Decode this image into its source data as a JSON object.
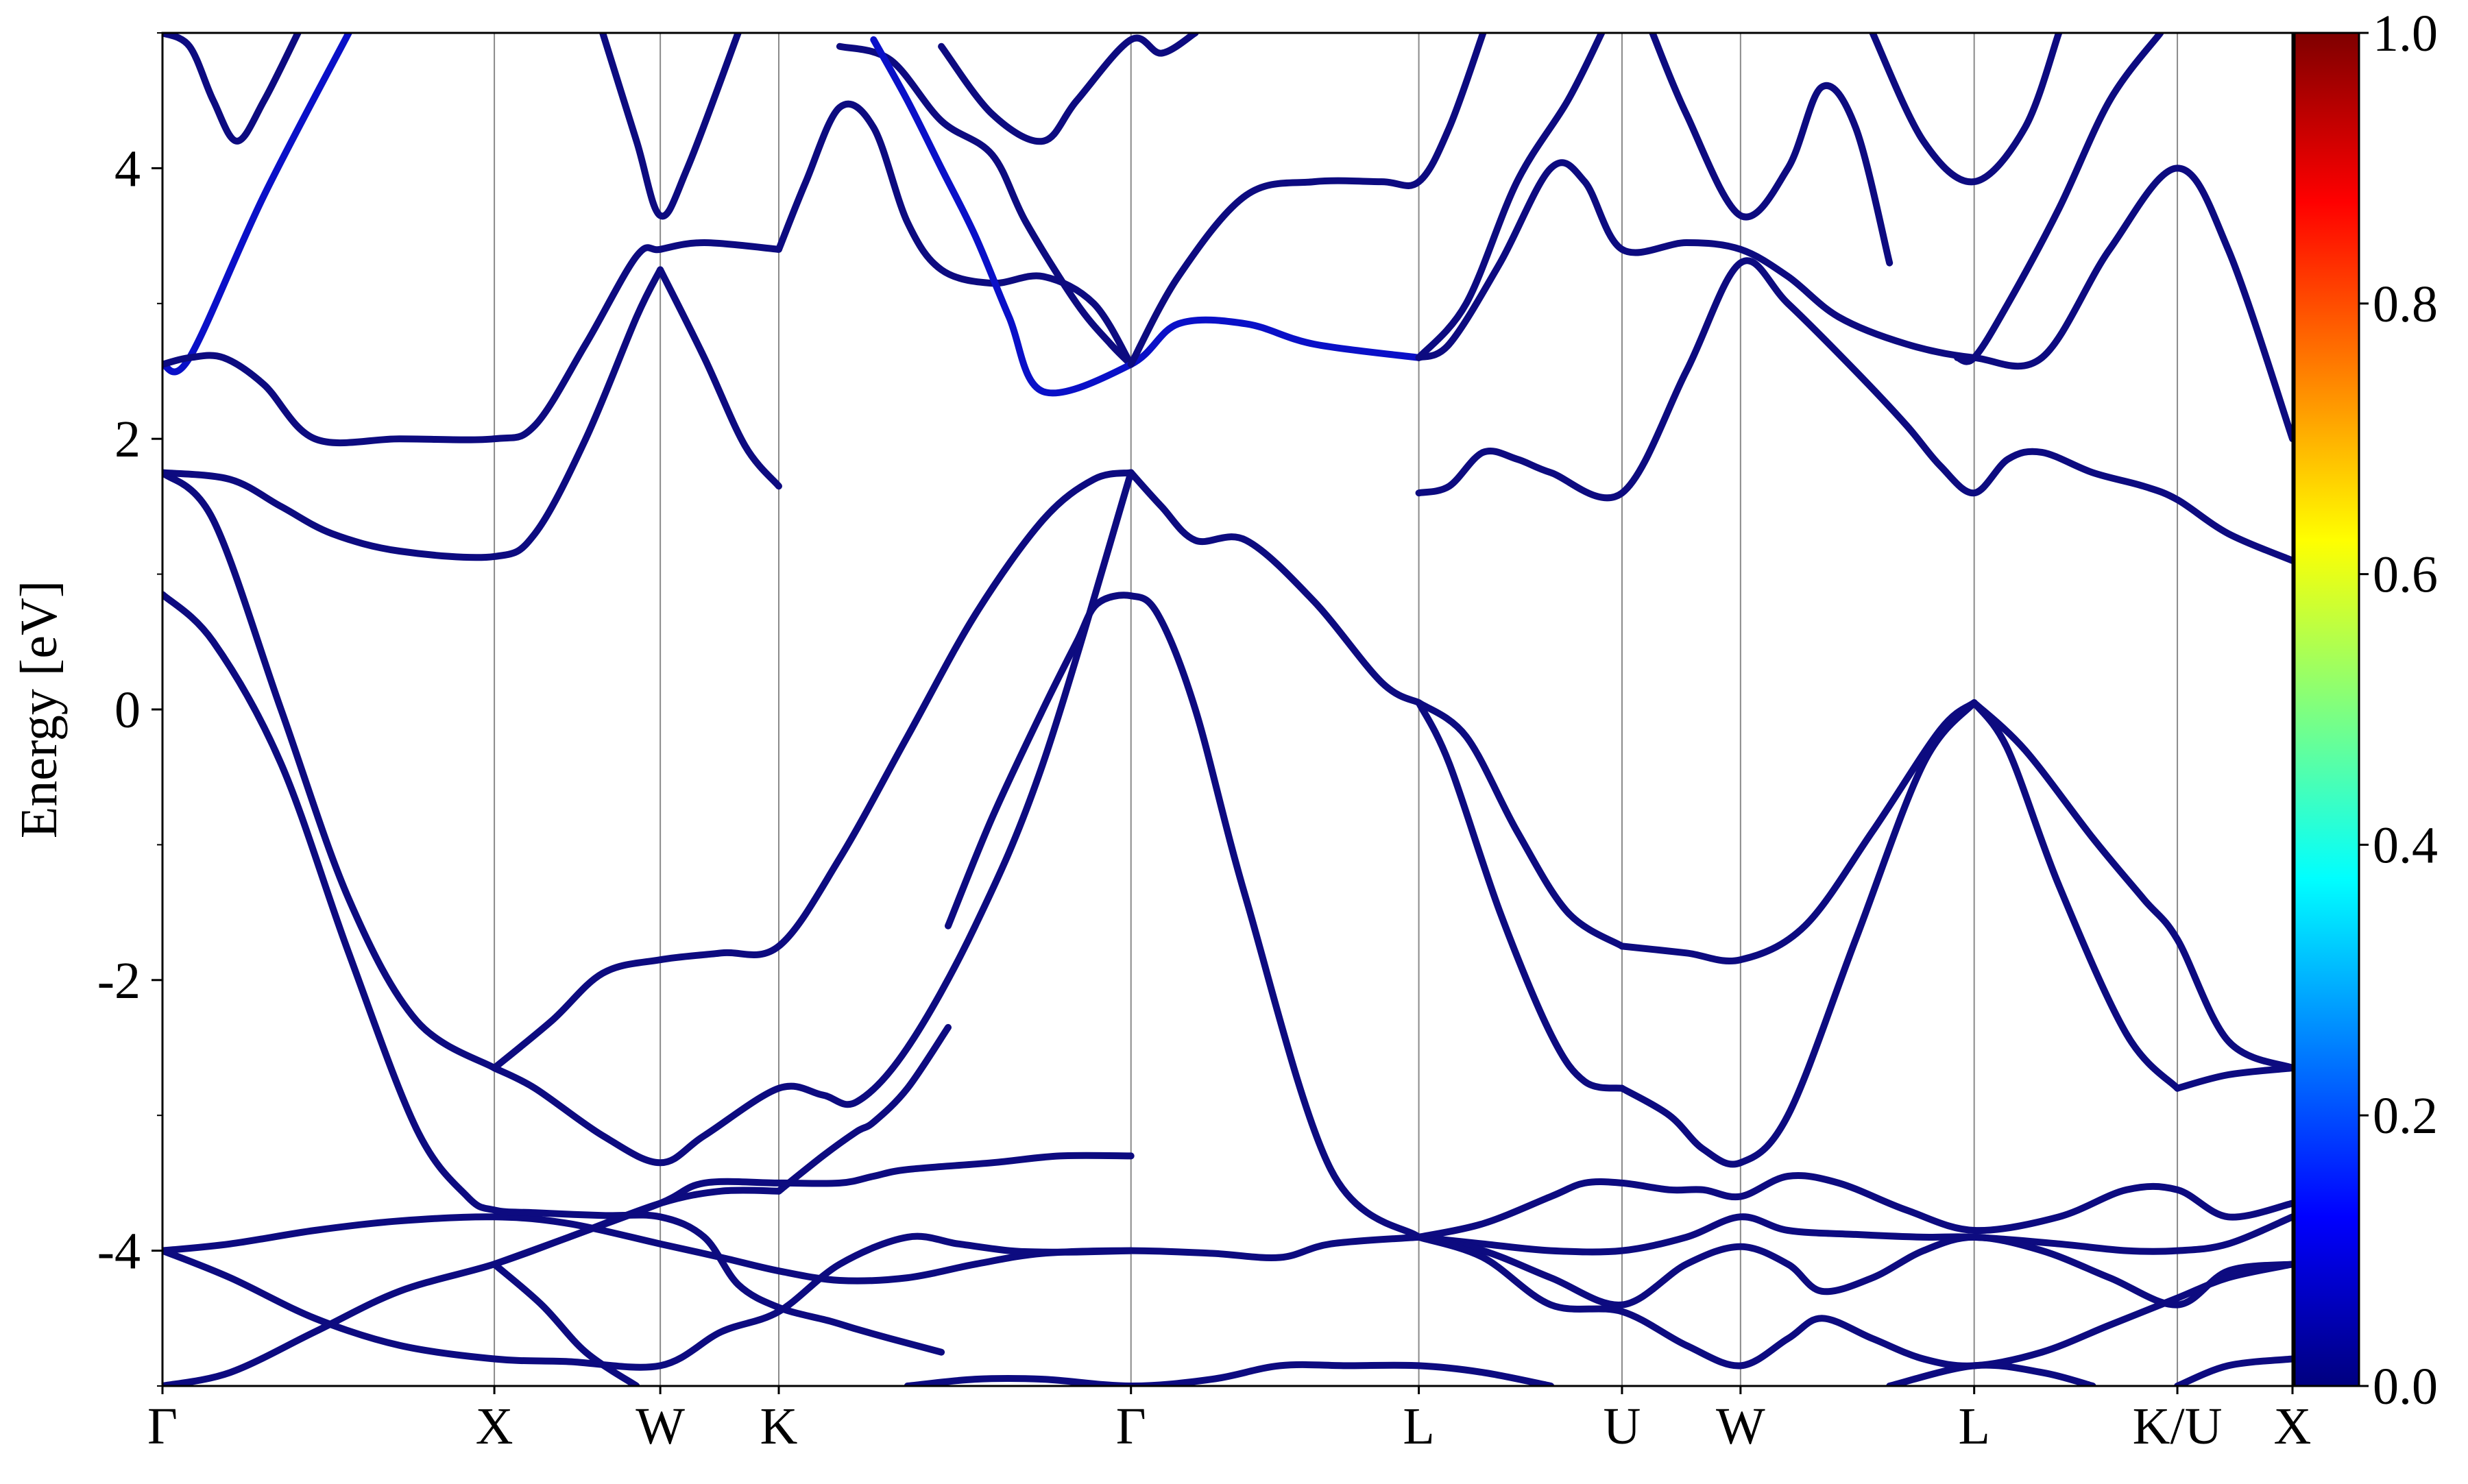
{
  "chart_data": {
    "type": "line",
    "title": "",
    "xlabel": "",
    "ylabel": "Energy [eV]",
    "ylim": [
      -5,
      5
    ],
    "yticks": [
      4,
      2,
      0,
      -2,
      -4
    ],
    "ytick_labels": [
      "4",
      "2",
      "0",
      "-2",
      "-4"
    ],
    "xlim": [
      0,
      6.29
    ],
    "high_symmetry_points": [
      {
        "label": "Γ",
        "x": 0.0
      },
      {
        "label": "X",
        "x": 0.98
      },
      {
        "label": "W",
        "x": 1.47
      },
      {
        "label": "K",
        "x": 1.82
      },
      {
        "label": "Γ",
        "x": 2.86
      },
      {
        "label": "L",
        "x": 3.71
      },
      {
        "label": "U",
        "x": 4.31
      },
      {
        "label": "W",
        "x": 4.66
      },
      {
        "label": "L",
        "x": 5.35
      },
      {
        "label": "K/U",
        "x": 5.95
      },
      {
        "label": "X",
        "x": 6.29
      }
    ],
    "grid": "vertical lines at high-symmetry points",
    "legend": "none",
    "colorbar": {
      "range": [
        0.0,
        1.0
      ],
      "ticks": [
        0.0,
        0.2,
        0.4,
        0.6,
        0.8,
        1.0
      ],
      "tick_labels": [
        "0.0",
        "0.2",
        "0.4",
        "0.6",
        "0.8",
        "1.0"
      ],
      "colormap": "jet",
      "colors": [
        "#00007f",
        "#0000ff",
        "#007fff",
        "#00ffff",
        "#7fff7f",
        "#ffff00",
        "#ff7f00",
        "#ff0000",
        "#7f0000"
      ]
    },
    "band_colors": {
      "dark": "#0d0b80",
      "bright": "#0a10c8"
    },
    "series": [
      {
        "color": "dark",
        "x": [
          0.0,
          0.2,
          0.45,
          0.7,
          0.98,
          1.2,
          1.47,
          1.65,
          1.82
        ],
        "y": [
          -5.0,
          -4.9,
          -4.6,
          -4.3,
          -4.1,
          -3.9,
          -3.65,
          -3.56,
          -3.56
        ]
      },
      {
        "color": "dark",
        "x": [
          1.82,
          1.95,
          2.05,
          2.1,
          2.2,
          2.32
        ],
        "y": [
          -3.56,
          -3.3,
          -3.12,
          -3.05,
          -2.8,
          -2.35
        ]
      },
      {
        "color": "dark",
        "x": [
          2.32,
          2.45,
          2.6,
          2.7,
          2.76,
          2.86,
          2.94,
          3.05,
          3.2,
          3.45,
          3.71
        ],
        "y": [
          -1.6,
          -0.8,
          0.0,
          0.5,
          0.78,
          0.84,
          0.7,
          0.0,
          -1.4,
          -3.4,
          -3.9
        ]
      },
      {
        "color": "dark",
        "x": [
          0.0,
          0.2,
          0.45,
          0.7,
          0.98,
          1.2,
          1.47,
          1.65,
          1.82,
          2.0,
          2.2,
          2.4,
          2.6,
          2.86,
          3.1,
          3.3,
          3.45,
          3.71
        ],
        "y": [
          -4.0,
          -3.95,
          -3.85,
          -3.78,
          -3.75,
          -3.8,
          -3.95,
          -4.05,
          -4.15,
          -4.22,
          -4.2,
          -4.1,
          -4.02,
          -4.0,
          -4.02,
          -4.05,
          -3.95,
          -3.9
        ]
      },
      {
        "color": "dark",
        "x": [
          0.0,
          0.2,
          0.45,
          0.7,
          0.98,
          1.2,
          1.47,
          1.65,
          1.82,
          2.0,
          2.2,
          2.35,
          2.5,
          2.6,
          2.7,
          2.86
        ],
        "y": [
          -4.0,
          -4.2,
          -4.5,
          -4.7,
          -4.8,
          -4.82,
          -4.85,
          -4.6,
          -4.45,
          -4.1,
          -3.9,
          -3.95,
          -4.0,
          -4.01,
          -4.01,
          -4.0
        ]
      },
      {
        "color": "dark",
        "x": [
          0.98,
          1.12,
          1.25,
          1.4
        ],
        "y": [
          -4.1,
          -4.4,
          -4.75,
          -5.0
        ]
      },
      {
        "color": "dark",
        "x": [
          0.98,
          1.2,
          1.47,
          1.6,
          1.82,
          2.0,
          2.1,
          2.2,
          2.45,
          2.65,
          2.86
        ],
        "y": [
          -4.1,
          -3.9,
          -3.65,
          -3.5,
          -3.5,
          -3.5,
          -3.45,
          -3.4,
          -3.35,
          -3.3,
          -3.3
        ]
      },
      {
        "color": "dark",
        "x": [
          0.0,
          0.15,
          0.35,
          0.55,
          0.75,
          0.9,
          0.98,
          1.1,
          1.3,
          1.47,
          1.6,
          1.7,
          1.82,
          1.97,
          2.05,
          2.15,
          2.3
        ],
        "y": [
          0.85,
          0.5,
          -0.4,
          -1.8,
          -3.1,
          -3.6,
          -3.7,
          -3.72,
          -3.74,
          -3.75,
          -3.9,
          -4.25,
          -4.42,
          -4.52,
          -4.58,
          -4.65,
          -4.75
        ]
      },
      {
        "color": "dark",
        "x": [
          0.0,
          0.15,
          0.35,
          0.55,
          0.75,
          0.98
        ],
        "y": [
          1.75,
          1.4,
          0.0,
          -1.4,
          -2.3,
          -2.65
        ]
      },
      {
        "color": "dark",
        "x": [
          0.98,
          1.1,
          1.3,
          1.47,
          1.6,
          1.82,
          1.95,
          2.05,
          2.2,
          2.4,
          2.6,
          2.86
        ],
        "y": [
          -2.65,
          -2.8,
          -3.15,
          -3.35,
          -3.15,
          -2.8,
          -2.85,
          -2.9,
          -2.5,
          -1.6,
          -0.4,
          1.75
        ]
      },
      {
        "color": "dark",
        "x": [
          0.98,
          1.15,
          1.3,
          1.47,
          1.65,
          1.82,
          2.0,
          2.2,
          2.4,
          2.6,
          2.75,
          2.86
        ],
        "y": [
          -2.65,
          -2.3,
          -1.95,
          -1.85,
          -1.8,
          -1.75,
          -1.1,
          -0.2,
          0.7,
          1.4,
          1.7,
          1.75
        ]
      },
      {
        "color": "dark",
        "x": [
          0.0,
          0.2,
          0.35,
          0.5,
          0.7,
          0.98,
          1.1,
          1.25,
          1.4,
          1.47
        ],
        "y": [
          1.75,
          1.7,
          1.5,
          1.3,
          1.17,
          1.13,
          1.3,
          2.0,
          2.9,
          3.25
        ]
      },
      {
        "color": "dark",
        "x": [
          1.47,
          1.6,
          1.72,
          1.82
        ],
        "y": [
          3.25,
          2.6,
          1.95,
          1.65
        ]
      },
      {
        "color": "dark",
        "x": [
          2.86,
          2.95,
          3.05,
          3.2,
          3.4,
          3.6,
          3.71
        ],
        "y": [
          1.75,
          1.5,
          1.25,
          1.25,
          0.8,
          0.2,
          0.05
        ]
      },
      {
        "color": "dark",
        "x": [
          3.71,
          3.8,
          3.95,
          4.1,
          4.2,
          4.31
        ],
        "y": [
          0.05,
          -0.4,
          -1.5,
          -2.4,
          -2.75,
          -2.8
        ]
      },
      {
        "color": "dark",
        "x": [
          3.71,
          3.85,
          4.0,
          4.15,
          4.31
        ],
        "y": [
          0.05,
          -0.2,
          -0.9,
          -1.5,
          -1.75
        ]
      },
      {
        "color": "dark",
        "x": [
          4.31,
          4.5,
          4.66,
          4.85,
          5.05,
          5.25,
          5.35
        ],
        "y": [
          -1.75,
          -1.8,
          -1.85,
          -1.6,
          -0.9,
          -0.15,
          0.05
        ]
      },
      {
        "color": "dark",
        "x": [
          4.31,
          4.45,
          4.55,
          4.66,
          4.8,
          5.0,
          5.2,
          5.35
        ],
        "y": [
          -2.8,
          -3.0,
          -3.25,
          -3.35,
          -3.0,
          -1.7,
          -0.4,
          0.05
        ]
      },
      {
        "color": "dark",
        "x": [
          5.35,
          5.45,
          5.6,
          5.8,
          5.95
        ],
        "y": [
          0.05,
          -0.3,
          -1.3,
          -2.4,
          -2.8
        ]
      },
      {
        "color": "dark",
        "x": [
          5.35,
          5.5,
          5.7,
          5.85,
          5.95,
          6.1,
          6.29
        ],
        "y": [
          0.05,
          -0.3,
          -0.95,
          -1.4,
          -1.7,
          -2.45,
          -2.65
        ]
      },
      {
        "color": "dark",
        "x": [
          5.95,
          6.1,
          6.29
        ],
        "y": [
          -2.8,
          -2.7,
          -2.65
        ]
      },
      {
        "color": "dark",
        "x": [
          3.71,
          3.9,
          4.1,
          4.2,
          4.31,
          4.45,
          4.55,
          4.66,
          4.8,
          4.95,
          5.15,
          5.35,
          5.6,
          5.8,
          5.95,
          6.1,
          6.29
        ],
        "y": [
          -3.9,
          -3.8,
          -3.6,
          -3.5,
          -3.5,
          -3.55,
          -3.55,
          -3.6,
          -3.45,
          -3.5,
          -3.7,
          -3.85,
          -3.75,
          -3.55,
          -3.55,
          -3.75,
          -3.65
        ]
      },
      {
        "color": "dark",
        "x": [
          3.71,
          3.9,
          4.1,
          4.31,
          4.5,
          4.66,
          4.8,
          5.0,
          5.2,
          5.35,
          5.6,
          5.8,
          5.95,
          6.1,
          6.29
        ],
        "y": [
          -3.9,
          -3.95,
          -4.0,
          -4.0,
          -3.9,
          -3.75,
          -3.85,
          -3.88,
          -3.9,
          -3.9,
          -3.95,
          -4.0,
          -4.0,
          -3.95,
          -3.75
        ]
      },
      {
        "color": "dark",
        "x": [
          3.71,
          3.9,
          4.1,
          4.31,
          4.5,
          4.66,
          4.8,
          4.9,
          5.05,
          5.2,
          5.35,
          5.55,
          5.75,
          5.95,
          6.1,
          6.29
        ],
        "y": [
          -3.9,
          -4.0,
          -4.2,
          -4.4,
          -4.1,
          -3.97,
          -4.1,
          -4.3,
          -4.2,
          -4.0,
          -3.9,
          -4.0,
          -4.2,
          -4.4,
          -4.15,
          -4.1
        ]
      },
      {
        "color": "dark",
        "x": [
          3.71,
          3.9,
          4.1,
          4.31,
          4.5,
          4.66,
          4.8,
          4.9,
          5.05,
          5.2,
          5.35,
          5.55,
          5.75,
          5.95,
          6.1,
          6.29
        ],
        "y": [
          -3.9,
          -4.05,
          -4.4,
          -4.45,
          -4.7,
          -4.85,
          -4.65,
          -4.5,
          -4.65,
          -4.8,
          -4.85,
          -4.75,
          -4.55,
          -4.35,
          -4.2,
          -4.1
        ]
      },
      {
        "color": "dark",
        "x": [
          2.2,
          2.4,
          2.6,
          2.86,
          3.1,
          3.3,
          3.5,
          3.71,
          3.9,
          4.1
        ],
        "y": [
          -5.0,
          -4.95,
          -4.95,
          -5.0,
          -4.95,
          -4.85,
          -4.85,
          -4.85,
          -4.9,
          -5.0
        ]
      },
      {
        "color": "dark",
        "x": [
          5.1,
          5.35,
          5.55,
          5.7
        ],
        "y": [
          -5.0,
          -4.85,
          -4.9,
          -5.0
        ]
      },
      {
        "color": "dark",
        "x": [
          5.95,
          6.1,
          6.29
        ],
        "y": [
          -5.0,
          -4.85,
          -4.8
        ]
      },
      {
        "color": "dark",
        "x": [
          0.0,
          0.08,
          0.15,
          0.22,
          0.3,
          0.4
        ],
        "y": [
          5.0,
          4.9,
          4.5,
          4.2,
          4.5,
          5.0
        ]
      },
      {
        "color": "bright",
        "x": [
          0.0,
          0.08,
          0.3,
          0.55
        ],
        "y": [
          2.55,
          2.6,
          3.8,
          5.0
        ]
      },
      {
        "color": "dark",
        "x": [
          0.0,
          0.08,
          0.18,
          0.3,
          0.45,
          0.7,
          0.98,
          1.1,
          1.25,
          1.4,
          1.47,
          1.6,
          1.82
        ],
        "y": [
          2.55,
          2.6,
          2.6,
          2.4,
          2.0,
          2.0,
          2.0,
          2.1,
          2.7,
          3.35,
          3.4,
          3.45,
          3.4
        ]
      },
      {
        "color": "dark",
        "x": [
          1.3,
          1.4,
          1.47,
          1.55,
          1.7
        ],
        "y": [
          5.0,
          4.2,
          3.65,
          4.0,
          5.0
        ]
      },
      {
        "color": "dark",
        "x": [
          1.82,
          1.9,
          2.0,
          2.1,
          2.2,
          2.3,
          2.45,
          2.6,
          2.75,
          2.86
        ],
        "y": [
          3.4,
          3.9,
          4.45,
          4.3,
          3.6,
          3.25,
          3.15,
          3.2,
          3.0,
          2.55
        ]
      },
      {
        "color": "dark",
        "x": [
          2.0,
          2.15,
          2.3,
          2.45,
          2.55,
          2.7,
          2.8,
          2.86
        ],
        "y": [
          4.9,
          4.8,
          4.35,
          4.1,
          3.6,
          3.0,
          2.7,
          2.55
        ]
      },
      {
        "color": "bright",
        "x": [
          2.1,
          2.2,
          2.3,
          2.4,
          2.5,
          2.6,
          2.86,
          3.0,
          3.2,
          3.4,
          3.71
        ],
        "y": [
          4.95,
          4.5,
          4.0,
          3.5,
          2.9,
          2.35,
          2.55,
          2.85,
          2.85,
          2.7,
          2.6
        ]
      },
      {
        "color": "dark",
        "x": [
          2.3,
          2.45,
          2.6,
          2.7,
          2.86,
          2.95,
          3.05
        ],
        "y": [
          4.9,
          4.4,
          4.2,
          4.5,
          4.95,
          4.85,
          5.0
        ]
      },
      {
        "color": "dark",
        "x": [
          2.86,
          3.0,
          3.2,
          3.4,
          3.6,
          3.71,
          3.8,
          3.9
        ],
        "y": [
          2.55,
          3.2,
          3.8,
          3.9,
          3.9,
          3.9,
          4.3,
          5.0
        ]
      },
      {
        "color": "dark",
        "x": [
          3.71,
          3.8,
          3.95,
          4.1,
          4.2,
          4.31,
          4.5,
          4.66,
          4.8,
          4.95,
          5.15,
          5.35,
          5.55,
          5.75,
          5.95,
          6.1,
          6.29
        ],
        "y": [
          2.6,
          2.7,
          3.3,
          4.0,
          3.9,
          3.4,
          3.45,
          3.4,
          3.2,
          2.9,
          2.7,
          2.6,
          2.6,
          3.4,
          4.0,
          3.4,
          2.0
        ]
      },
      {
        "color": "dark",
        "x": [
          3.71,
          3.85,
          4.0,
          4.15,
          4.25
        ],
        "y": [
          2.6,
          3.0,
          3.9,
          4.5,
          5.0
        ]
      },
      {
        "color": "dark",
        "x": [
          3.71,
          3.8,
          3.9,
          4.0,
          4.1,
          4.31,
          4.5,
          4.66,
          4.8,
          5.0,
          5.15,
          5.25,
          5.35,
          5.45,
          5.55,
          5.7,
          5.85,
          5.95,
          6.1,
          6.29
        ],
        "y": [
          1.6,
          1.65,
          1.9,
          1.85,
          1.75,
          1.6,
          2.5,
          3.3,
          3.0,
          2.5,
          2.1,
          1.8,
          1.6,
          1.85,
          1.9,
          1.75,
          1.65,
          1.55,
          1.3,
          1.1
        ]
      },
      {
        "color": "dark",
        "x": [
          4.4,
          4.5,
          4.66,
          4.8,
          4.9,
          5.0,
          5.1
        ],
        "y": [
          5.0,
          4.4,
          3.65,
          4.0,
          4.6,
          4.3,
          3.3
        ]
      },
      {
        "color": "dark",
        "x": [
          5.05,
          5.2,
          5.35,
          5.5,
          5.6
        ],
        "y": [
          5.0,
          4.2,
          3.9,
          4.3,
          5.0
        ]
      },
      {
        "color": "dark",
        "x": [
          5.3,
          5.35,
          5.45,
          5.6,
          5.75,
          5.9
        ],
        "y": [
          2.6,
          2.6,
          3.0,
          3.7,
          4.5,
          5.0
        ]
      }
    ]
  }
}
